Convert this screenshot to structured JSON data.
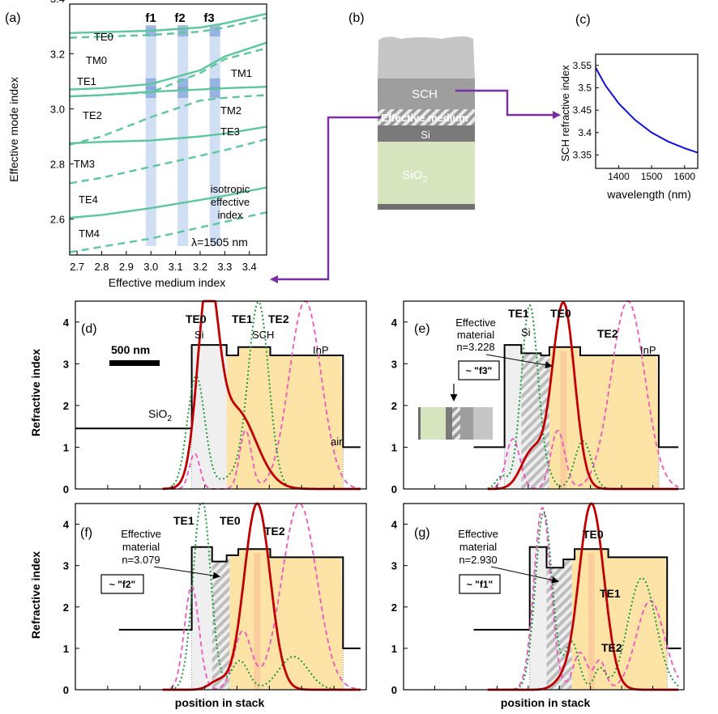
{
  "panels": {
    "a": {
      "label": "(a)",
      "xlabel": "Effective medium index",
      "ylabel": "Effective mode index",
      "xticks": [
        "2.7",
        "2.8",
        "2.9",
        "3.0",
        "3.1",
        "3.2",
        "3.3",
        "3.4"
      ],
      "yticks": [
        "2.6",
        "2.8",
        "3.0",
        "3.2",
        "3.4"
      ],
      "band_labels": [
        "f1",
        "f2",
        "f3"
      ],
      "mode_labels": [
        "TE0",
        "TM0",
        "TE1",
        "TM1",
        "TE2",
        "TM2",
        "TE3",
        "TM3",
        "TE4",
        "TM4"
      ],
      "note_lines": [
        "isotropic",
        "effective",
        "index"
      ],
      "wavelength": "λ=1505 nm"
    },
    "b": {
      "label": "(b)",
      "sch": "SCH",
      "effective_medium": "Effective medium",
      "si": "Si",
      "sio2": "SiO",
      "sio2_sub": "2"
    },
    "c": {
      "label": "(c)",
      "ylabel": "SCH refractive index",
      "xlabel": "wavelength (nm)",
      "yticks": [
        "3.35",
        "3.4",
        "3.45",
        "3.5",
        "3.55"
      ],
      "xticks": [
        "1400",
        "1500",
        "1600"
      ]
    },
    "d": {
      "label": "(d)",
      "ylabel": "Refractive index",
      "scale": "500 nm",
      "mode_labels": [
        "TE0",
        "TE1",
        "TE2"
      ],
      "layers": [
        "Si",
        "SCH",
        "InP"
      ],
      "sio2": "SiO",
      "sio2_sub": "2",
      "air": "air"
    },
    "e": {
      "label": "(e)",
      "mode_labels": [
        "TE1",
        "TE0",
        "TE2"
      ],
      "si": "Si",
      "inp": "InP",
      "eff_lines": [
        "Effective",
        "material",
        "n=3.228"
      ],
      "approx": "~ \"f3\""
    },
    "f": {
      "label": "(f)",
      "ylabel": "Refractive index",
      "xlabel": "position in stack",
      "mode_labels": [
        "TE1",
        "TE0",
        "TE2"
      ],
      "eff_lines": [
        "Effective",
        "material",
        "n=3.079"
      ],
      "approx": "~ \"f2\""
    },
    "g": {
      "label": "(g)",
      "xlabel": "position in stack",
      "mode_labels": [
        "TE0",
        "TE1",
        "TE2"
      ],
      "eff_lines": [
        "Effective",
        "material",
        "n=2.930"
      ],
      "approx": "~ \"f1\""
    },
    "yticks_profile": [
      "0",
      "1",
      "2",
      "3",
      "4"
    ]
  },
  "colors": {
    "mode_green": "#5cc79a",
    "band_blue": "#a9c4ea",
    "te0_red": "#c00000",
    "te1_green": "#1a9a3a",
    "te2_magenta": "#ee55c0",
    "arrow_purple": "#7b2ea3",
    "inp_fill": "#fde4a6",
    "curve_blue": "#1010e0"
  },
  "chart_data": [
    {
      "id": "a",
      "type": "line",
      "title": "",
      "xlabel": "Effective medium index",
      "ylabel": "Effective mode index",
      "xlim": [
        2.67,
        3.47
      ],
      "ylim": [
        2.47,
        3.38
      ],
      "bands_x": [
        3.0,
        3.13,
        3.26
      ],
      "series": [
        {
          "name": "TE0",
          "style": "solid",
          "x": [
            2.67,
            2.8,
            3.0,
            3.2,
            3.3,
            3.47
          ],
          "y": [
            3.275,
            3.278,
            3.283,
            3.295,
            3.31,
            3.345
          ]
        },
        {
          "name": "TM0",
          "style": "dashed",
          "x": [
            2.67,
            2.8,
            3.0,
            3.2,
            3.3,
            3.47
          ],
          "y": [
            3.258,
            3.262,
            3.268,
            3.28,
            3.295,
            3.33
          ]
        },
        {
          "name": "TE1",
          "style": "solid",
          "x": [
            2.67,
            2.8,
            3.0,
            3.2,
            3.3,
            3.47
          ],
          "y": [
            3.07,
            3.075,
            3.09,
            3.14,
            3.19,
            3.24
          ]
        },
        {
          "name": "TM1",
          "style": "solid",
          "x": [
            2.67,
            2.8,
            3.0,
            3.2,
            3.3,
            3.47
          ],
          "y": [
            3.045,
            3.05,
            3.062,
            3.07,
            3.075,
            3.08
          ]
        },
        {
          "name": "TE2",
          "style": "dashed",
          "x": [
            2.67,
            2.8,
            3.0,
            3.2,
            3.3,
            3.47
          ],
          "y": [
            3.045,
            3.05,
            3.06,
            3.13,
            3.18,
            3.22
          ]
        },
        {
          "name": "TM2",
          "style": "dashed",
          "x": [
            2.67,
            2.8,
            3.0,
            3.2,
            3.3,
            3.47
          ],
          "y": [
            2.87,
            2.9,
            2.97,
            3.03,
            3.04,
            3.05
          ]
        },
        {
          "name": "TE3",
          "style": "solid",
          "x": [
            2.67,
            2.8,
            3.0,
            3.2,
            3.3,
            3.47
          ],
          "y": [
            2.875,
            2.88,
            2.885,
            2.9,
            2.91,
            2.935
          ]
        },
        {
          "name": "TM3",
          "style": "dashed",
          "x": [
            2.67,
            2.8,
            3.0,
            3.2,
            3.3,
            3.47
          ],
          "y": [
            2.73,
            2.75,
            2.79,
            2.83,
            2.85,
            2.89
          ]
        },
        {
          "name": "TE4",
          "style": "solid",
          "x": [
            2.67,
            2.8,
            3.0,
            3.2,
            3.3,
            3.47
          ],
          "y": [
            2.605,
            2.615,
            2.64,
            2.67,
            2.685,
            2.715
          ]
        },
        {
          "name": "TM4",
          "style": "dashed",
          "x": [
            2.67,
            2.8,
            3.0,
            3.2,
            3.3,
            3.47
          ],
          "y": [
            2.48,
            2.5,
            2.53,
            2.57,
            2.59,
            2.625
          ]
        }
      ]
    },
    {
      "id": "c",
      "type": "line",
      "title": "",
      "xlabel": "wavelength (nm)",
      "ylabel": "SCH refractive index",
      "xlim": [
        1330,
        1640
      ],
      "ylim": [
        3.32,
        3.575
      ],
      "series": [
        {
          "name": "",
          "x": [
            1330,
            1360,
            1400,
            1450,
            1500,
            1550,
            1600,
            1640
          ],
          "y": [
            3.545,
            3.505,
            3.465,
            3.428,
            3.4,
            3.38,
            3.365,
            3.355
          ]
        }
      ]
    }
  ]
}
